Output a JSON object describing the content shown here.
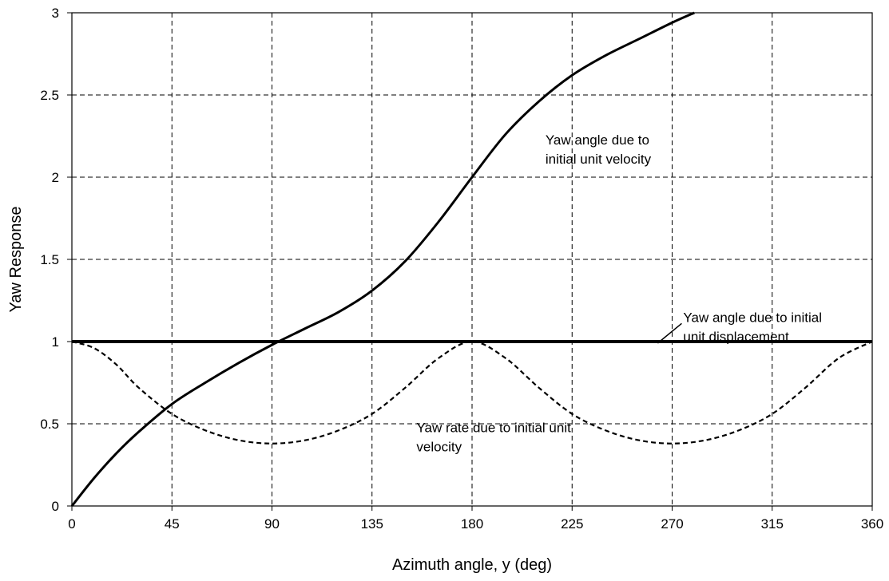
{
  "chart_data": {
    "type": "line",
    "title": "",
    "xlabel": "Azimuth angle, y (deg)",
    "ylabel": "Yaw Response",
    "xlim": [
      0,
      360
    ],
    "ylim": [
      0,
      3
    ],
    "grid": true,
    "x_ticks": [
      "0",
      "45",
      "90",
      "135",
      "180",
      "225",
      "270",
      "315",
      "360"
    ],
    "y_ticks": [
      "0",
      "0.5",
      "1",
      "1.5",
      "2",
      "2.5",
      "3"
    ],
    "series": [
      {
        "style": "solid",
        "x": [
          0,
          10,
          20,
          30,
          45,
          60,
          75,
          90,
          105,
          120,
          135,
          150,
          165,
          180,
          195,
          210,
          225,
          240,
          255,
          270,
          280
        ],
        "y": [
          0,
          0.17,
          0.32,
          0.45,
          0.62,
          0.75,
          0.87,
          0.98,
          1.08,
          1.18,
          1.31,
          1.49,
          1.73,
          2.0,
          2.26,
          2.46,
          2.62,
          2.74,
          2.84,
          2.94,
          3.0
        ]
      },
      {
        "style": "solid-thick",
        "x": [
          0,
          360
        ],
        "y": [
          1,
          1
        ]
      },
      {
        "style": "dashed",
        "x": [
          0,
          10,
          20,
          30,
          45,
          60,
          75,
          90,
          105,
          120,
          135,
          150,
          165,
          180,
          195,
          210,
          225,
          240,
          255,
          270,
          285,
          300,
          315,
          330,
          345,
          360
        ],
        "y": [
          1,
          0.96,
          0.86,
          0.72,
          0.56,
          0.46,
          0.4,
          0.38,
          0.4,
          0.46,
          0.56,
          0.72,
          0.9,
          1.0,
          0.9,
          0.72,
          0.56,
          0.46,
          0.4,
          0.38,
          0.4,
          0.46,
          0.56,
          0.72,
          0.9,
          1.0
        ]
      }
    ],
    "annotations": [
      {
        "lines": [
          "Yaw angle due to",
          "initial unit velocity"
        ],
        "x": 213,
        "y": 2.2
      },
      {
        "lines": [
          "Yaw angle due to initial",
          "unit displacement"
        ],
        "x": 275,
        "y": 1.12
      },
      {
        "lines": [
          "Yaw rate due to initial unit",
          "velocity"
        ],
        "x": 155,
        "y": 0.45
      }
    ]
  }
}
